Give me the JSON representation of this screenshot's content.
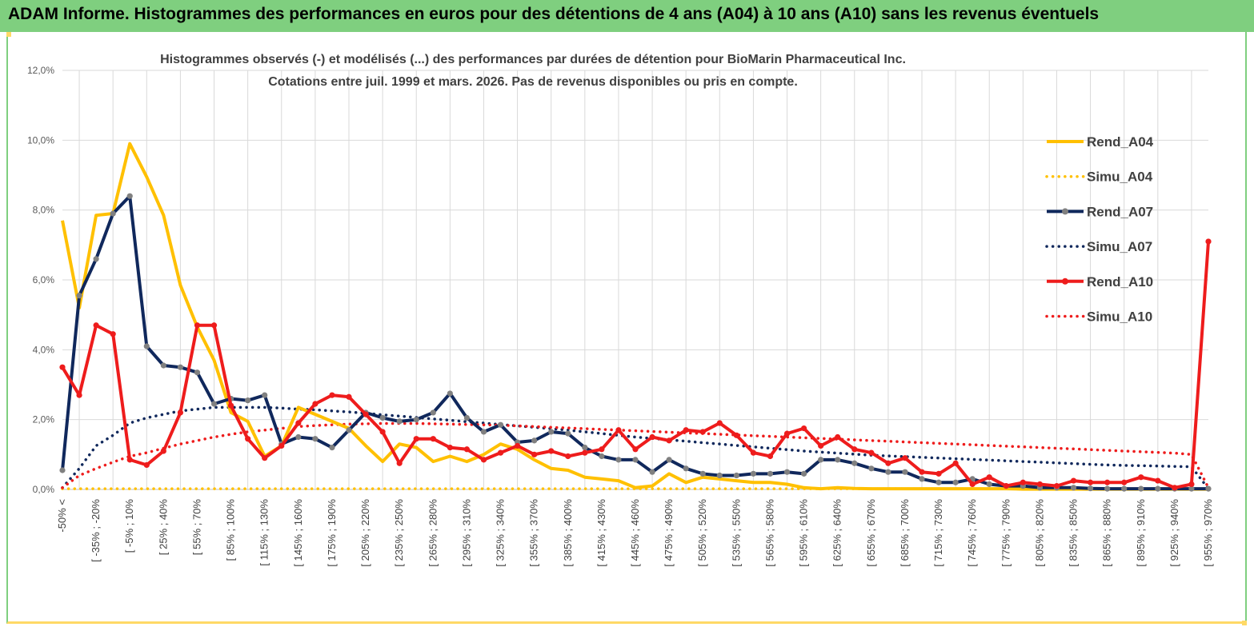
{
  "banner": {
    "title": "ADAM Informe. Histogrammes des performances en euros pour des détentions de 4 ans (A04) à 10 ans (A10) sans les revenus éventuels"
  },
  "colors": {
    "banner": "#7fcf7f",
    "a04": "#ffc000",
    "a07": "#10285c",
    "a10": "#ee1c1c",
    "grid": "#d9d9d9",
    "marker_a07": "#808080"
  },
  "chart_data": {
    "type": "line",
    "title_line1": "Histogrammes observés (-) et modélisés (...) des performances par durées de détention pour BioMarin Pharmaceutical Inc.",
    "title_line2": "Cotations entre juil. 1999 et mars. 2026.  Pas de revenus disponibles ou pris en compte.",
    "ylim": [
      0,
      12
    ],
    "yticks": [
      "0,0%",
      "2,0%",
      "4,0%",
      "6,0%",
      "8,0%",
      "10,0%",
      "12,0%"
    ],
    "xlabels": [
      "-50% <",
      "[ -35% ; -20%",
      "[ -5% ; 10%",
      "[ 25% ; 40%",
      "[ 55% ; 70%",
      "[ 85% ; 100%",
      "[ 115% ; 130%",
      "[ 145% ; 160%",
      "[ 175% ; 190%",
      "[ 205% ; 220%",
      "[ 235% ; 250%",
      "[ 265% ; 280%",
      "[ 295% ; 310%",
      "[ 325% ; 340%",
      "[ 355% ; 370%",
      "[ 385% ; 400%",
      "[ 415% ; 430%",
      "[ 445% ; 460%",
      "[ 475% ; 490%",
      "[ 505% ; 520%",
      "[ 535% ; 550%",
      "[ 565% ; 580%",
      "[ 595% ; 610%",
      "[ 625% ; 640%",
      "[ 655% ; 670%",
      "[ 685% ; 700%",
      "[ 715% ; 730%",
      "[ 745% ; 760%",
      "[ 775% ; 790%",
      "[ 805% ; 820%",
      "[ 835% ; 850%",
      "[ 865% ; 880%",
      "[ 895% ; 910%",
      "[ 925% ; 940%",
      "[ 955% ; 970%"
    ],
    "n_points": 69,
    "series": [
      {
        "name": "Rend_A04",
        "style": "solid",
        "color": "#ffc000",
        "markers": false,
        "values": [
          7.7,
          5.2,
          7.85,
          7.9,
          9.9,
          8.95,
          7.85,
          5.85,
          4.65,
          3.7,
          2.2,
          1.95,
          0.95,
          1.25,
          2.35,
          2.15,
          1.95,
          1.75,
          1.25,
          0.8,
          1.3,
          1.2,
          0.8,
          0.95,
          0.8,
          1.0,
          1.3,
          1.15,
          0.85,
          0.6,
          0.55,
          0.35,
          0.3,
          0.25,
          0.05,
          0.1,
          0.45,
          0.2,
          0.35,
          0.3,
          0.25,
          0.2,
          0.2,
          0.15,
          0.05,
          0.02,
          0.05,
          0.03,
          0.02,
          0.02,
          0.02,
          0.02,
          0.02,
          0.02,
          0.02,
          0.02,
          0.02,
          0.01,
          0.01,
          0.01,
          0.01,
          0.01,
          0.01,
          0.01,
          0.01,
          0.01,
          0.01,
          0.01,
          0.01
        ]
      },
      {
        "name": "Simu_A04",
        "style": "dotted",
        "color": "#ffc000",
        "markers": false,
        "values": [
          0.02,
          0.02,
          0.02,
          0.02,
          0.02,
          0.02,
          0.02,
          0.02,
          0.02,
          0.02,
          0.02,
          0.02,
          0.02,
          0.02,
          0.02,
          0.02,
          0.02,
          0.02,
          0.02,
          0.02,
          0.02,
          0.02,
          0.02,
          0.02,
          0.02,
          0.02,
          0.02,
          0.02,
          0.02,
          0.02,
          0.02,
          0.02,
          0.02,
          0.02,
          0.02,
          0.02,
          0.02,
          0.02,
          0.02,
          0.02,
          0.02,
          0.02,
          0.02,
          0.02,
          0.02,
          0.02,
          0.02,
          0.02,
          0.02,
          0.02,
          0.02,
          0.02,
          0.02,
          0.02,
          0.02,
          0.02,
          0.02,
          0.02,
          0.02,
          0.02,
          0.02,
          0.02,
          0.02,
          0.02,
          0.02,
          0.02,
          0.02,
          0.02,
          0.02
        ]
      },
      {
        "name": "Rend_A07",
        "style": "solid",
        "color": "#10285c",
        "markers": true,
        "values": [
          0.55,
          5.55,
          6.6,
          7.9,
          8.4,
          4.1,
          3.55,
          3.5,
          3.35,
          2.45,
          2.6,
          2.55,
          2.7,
          1.3,
          1.5,
          1.45,
          1.2,
          1.7,
          2.2,
          2.05,
          1.95,
          2.0,
          2.2,
          2.75,
          2.05,
          1.65,
          1.85,
          1.35,
          1.4,
          1.65,
          1.6,
          1.2,
          0.95,
          0.85,
          0.85,
          0.5,
          0.85,
          0.6,
          0.45,
          0.4,
          0.4,
          0.45,
          0.45,
          0.5,
          0.45,
          0.85,
          0.85,
          0.75,
          0.6,
          0.5,
          0.5,
          0.3,
          0.2,
          0.2,
          0.3,
          0.15,
          0.1,
          0.1,
          0.05,
          0.05,
          0.05,
          0.03,
          0.02,
          0.02,
          0.02,
          0.02,
          0.02,
          0.02,
          0.02
        ]
      },
      {
        "name": "Simu_A07",
        "style": "dotted",
        "color": "#10285c",
        "markers": false,
        "values": [
          0.05,
          0.6,
          1.25,
          1.55,
          1.9,
          2.05,
          2.15,
          2.25,
          2.3,
          2.35,
          2.35,
          2.35,
          2.35,
          2.33,
          2.3,
          2.28,
          2.25,
          2.22,
          2.18,
          2.14,
          2.1,
          2.06,
          2.02,
          1.98,
          1.94,
          1.9,
          1.86,
          1.82,
          1.78,
          1.74,
          1.7,
          1.65,
          1.6,
          1.55,
          1.5,
          1.46,
          1.42,
          1.38,
          1.34,
          1.3,
          1.26,
          1.22,
          1.18,
          1.14,
          1.1,
          1.07,
          1.04,
          1.01,
          0.98,
          0.96,
          0.94,
          0.92,
          0.9,
          0.88,
          0.86,
          0.84,
          0.82,
          0.8,
          0.78,
          0.76,
          0.74,
          0.72,
          0.7,
          0.69,
          0.68,
          0.67,
          0.66,
          0.65,
          0.02
        ]
      },
      {
        "name": "Rend_A10",
        "style": "solid",
        "color": "#ee1c1c",
        "markers": true,
        "values": [
          3.5,
          2.7,
          4.7,
          4.45,
          0.85,
          0.7,
          1.1,
          2.2,
          4.7,
          4.7,
          2.4,
          1.45,
          0.9,
          1.25,
          1.9,
          2.45,
          2.7,
          2.65,
          2.15,
          1.65,
          0.75,
          1.45,
          1.45,
          1.2,
          1.15,
          0.85,
          1.05,
          1.25,
          1.0,
          1.1,
          0.95,
          1.05,
          1.15,
          1.7,
          1.15,
          1.5,
          1.4,
          1.7,
          1.65,
          1.9,
          1.55,
          1.05,
          0.95,
          1.6,
          1.75,
          1.25,
          1.5,
          1.15,
          1.05,
          0.75,
          0.9,
          0.5,
          0.45,
          0.75,
          0.15,
          0.35,
          0.1,
          0.2,
          0.15,
          0.1,
          0.25,
          0.2,
          0.2,
          0.2,
          0.35,
          0.25,
          0.05,
          0.15,
          7.1
        ]
      },
      {
        "name": "Simu_A10",
        "style": "dotted",
        "color": "#ee1c1c",
        "markers": false,
        "values": [
          0.05,
          0.4,
          0.6,
          0.78,
          0.95,
          1.05,
          1.18,
          1.3,
          1.4,
          1.5,
          1.58,
          1.65,
          1.7,
          1.75,
          1.8,
          1.83,
          1.85,
          1.87,
          1.88,
          1.89,
          1.89,
          1.89,
          1.88,
          1.87,
          1.86,
          1.85,
          1.84,
          1.82,
          1.8,
          1.78,
          1.76,
          1.74,
          1.72,
          1.7,
          1.68,
          1.66,
          1.64,
          1.62,
          1.6,
          1.58,
          1.56,
          1.54,
          1.52,
          1.5,
          1.48,
          1.46,
          1.44,
          1.42,
          1.4,
          1.38,
          1.36,
          1.34,
          1.32,
          1.3,
          1.28,
          1.26,
          1.24,
          1.22,
          1.2,
          1.18,
          1.16,
          1.14,
          1.12,
          1.1,
          1.08,
          1.06,
          1.04,
          1.0,
          0.05
        ]
      }
    ]
  }
}
